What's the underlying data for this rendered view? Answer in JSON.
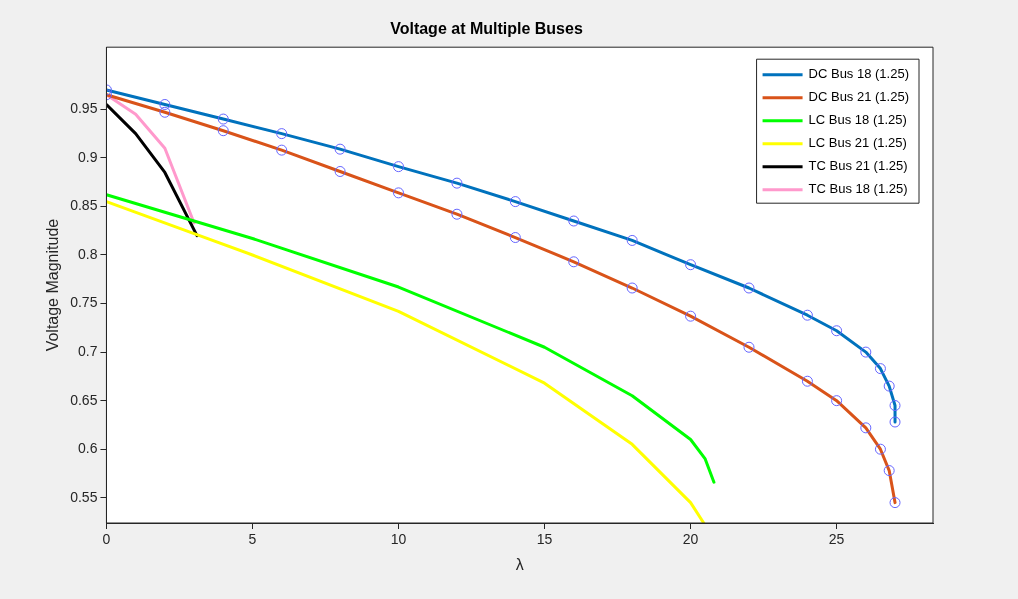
{
  "chart_data": {
    "type": "line",
    "title": "Voltage at Multiple Buses",
    "xlabel": "λ",
    "ylabel": "Voltage Magnitude",
    "xlim": [
      0,
      28.3
    ],
    "ylim": [
      0.524,
      1.014
    ],
    "xticks": [
      0,
      5,
      10,
      15,
      20,
      25
    ],
    "yticks": [
      0.55,
      0.6,
      0.65,
      0.7,
      0.75,
      0.8,
      0.85,
      0.9,
      0.95
    ],
    "grid": false,
    "legend": "top right",
    "series": [
      {
        "name": "DC Bus 18 (1.25)",
        "color": "#0072bd",
        "x": [
          0,
          2,
          4,
          6,
          8,
          10,
          12,
          14,
          16,
          18,
          20,
          22,
          24,
          25,
          26,
          26.5,
          26.8,
          27,
          27
        ],
        "values": [
          0.97,
          0.955,
          0.94,
          0.925,
          0.909,
          0.891,
          0.874,
          0.855,
          0.835,
          0.815,
          0.79,
          0.766,
          0.738,
          0.722,
          0.7,
          0.683,
          0.665,
          0.645,
          0.628
        ]
      },
      {
        "name": "DC Bus 21 (1.25)",
        "color": "#d95319",
        "x": [
          0,
          2,
          4,
          6,
          8,
          10,
          12,
          14,
          16,
          18,
          20,
          22,
          24,
          25,
          26,
          26.5,
          26.8,
          27
        ],
        "values": [
          0.965,
          0.947,
          0.928,
          0.908,
          0.886,
          0.864,
          0.842,
          0.818,
          0.793,
          0.766,
          0.737,
          0.705,
          0.67,
          0.65,
          0.622,
          0.6,
          0.578,
          0.545
        ]
      },
      {
        "name": "LC Bus 18 (1.25)",
        "color": "#00ff00",
        "x": [
          0,
          3,
          5,
          10,
          15,
          18,
          20,
          20.5,
          20.8
        ],
        "values": [
          0.862,
          0.835,
          0.817,
          0.767,
          0.705,
          0.655,
          0.61,
          0.59,
          0.566
        ]
      },
      {
        "name": "LC Bus 21 (1.25)",
        "color": "#ffff00",
        "x": [
          0,
          3,
          5,
          10,
          15,
          18,
          20,
          20.45
        ],
        "values": [
          0.855,
          0.822,
          0.8,
          0.742,
          0.668,
          0.605,
          0.545,
          0.524
        ]
      },
      {
        "name": "TC Bus 21 (1.25)",
        "color": "#000000",
        "x": [
          0,
          1,
          2,
          3.1
        ],
        "values": [
          0.955,
          0.925,
          0.885,
          0.82
        ]
      },
      {
        "name": "TC Bus 18 (1.25)",
        "color": "#ff99cc",
        "x": [
          0,
          1,
          2,
          3
        ],
        "values": [
          0.965,
          0.945,
          0.91,
          0.833
        ]
      },
      {
        "type": "scatter",
        "marker": "circle",
        "color": "#6666ff",
        "x": [
          0,
          2,
          4,
          6,
          8,
          10,
          12,
          14,
          16,
          18,
          20,
          22,
          24,
          25,
          26,
          26.5,
          26.8,
          27,
          27
        ],
        "values": [
          0.97,
          0.955,
          0.94,
          0.925,
          0.909,
          0.891,
          0.874,
          0.855,
          0.835,
          0.815,
          0.79,
          0.766,
          0.738,
          0.722,
          0.7,
          0.683,
          0.665,
          0.645,
          0.628
        ]
      },
      {
        "type": "scatter",
        "marker": "circle",
        "color": "#6666ff",
        "x": [
          0,
          2,
          4,
          6,
          8,
          10,
          12,
          14,
          16,
          18,
          20,
          22,
          24,
          25,
          26,
          26.5,
          26.8,
          27
        ],
        "values": [
          0.965,
          0.947,
          0.928,
          0.908,
          0.886,
          0.864,
          0.842,
          0.818,
          0.793,
          0.766,
          0.737,
          0.705,
          0.67,
          0.65,
          0.622,
          0.6,
          0.578,
          0.545
        ]
      }
    ]
  }
}
